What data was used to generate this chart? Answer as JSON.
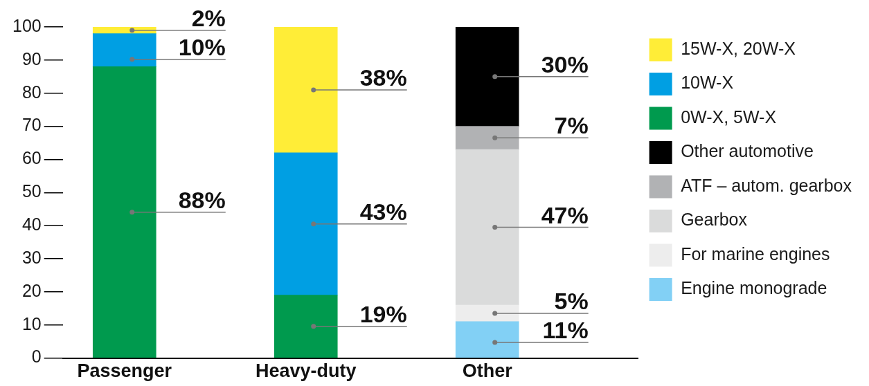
{
  "chart_data": {
    "type": "bar",
    "stacked": true,
    "legend": "top right",
    "categories": [
      "Passenger",
      "Heavy-duty",
      "Other"
    ],
    "ylim": [
      0,
      100
    ],
    "yticks": [
      0,
      10,
      20,
      30,
      40,
      50,
      60,
      70,
      80,
      90,
      100
    ],
    "series": [
      {
        "name": "Engine monograde",
        "color": "#82d0f5",
        "values": [
          null,
          null,
          11
        ],
        "value_labels": [
          null,
          null,
          "11%"
        ]
      },
      {
        "name": "For marine engines",
        "color": "#ededed",
        "values": [
          null,
          null,
          5
        ],
        "value_labels": [
          null,
          null,
          "5%"
        ]
      },
      {
        "name": "Gearbox",
        "color": "#dadbdb",
        "values": [
          null,
          null,
          47
        ],
        "value_labels": [
          null,
          null,
          "47%"
        ]
      },
      {
        "name": "ATF – autom. gearbox",
        "color": "#b1b2b4",
        "values": [
          null,
          null,
          7
        ],
        "value_labels": [
          null,
          null,
          "7%"
        ]
      },
      {
        "name": "Other automotive",
        "color": "#000000",
        "values": [
          null,
          null,
          30
        ],
        "value_labels": [
          null,
          null,
          "30%"
        ]
      },
      {
        "name": "0W-X, 5W-X",
        "color": "#009a4e",
        "values": [
          88,
          19,
          null
        ],
        "value_labels": [
          "88%",
          "19%",
          null
        ]
      },
      {
        "name": "10W-X",
        "color": "#009fe3",
        "values": [
          10,
          43,
          null
        ],
        "value_labels": [
          "10%",
          "43%",
          null
        ]
      },
      {
        "name": "15W-X, 20W-X",
        "color": "#ffed37",
        "values": [
          2,
          38,
          null
        ],
        "value_labels": [
          "2%",
          "38%",
          null
        ]
      }
    ]
  }
}
